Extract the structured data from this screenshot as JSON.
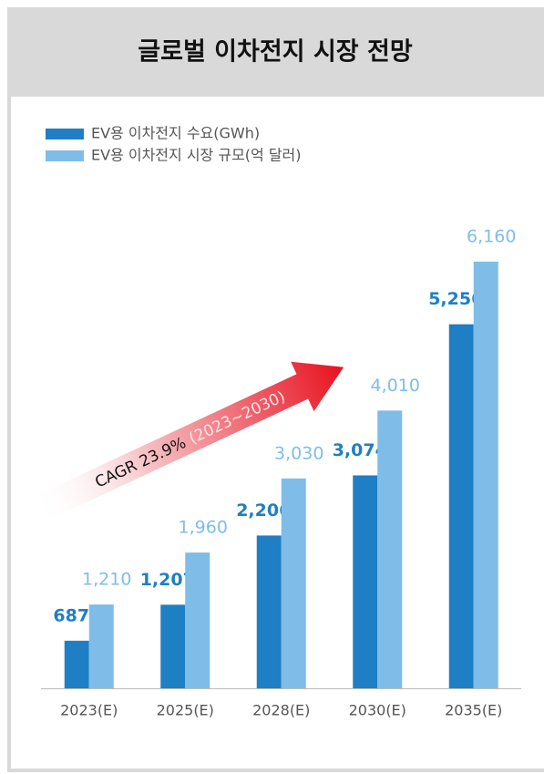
{
  "chart_data": {
    "type": "bar",
    "title": "글로벌 이차전지 시장 전망",
    "categories": [
      "2023(E)",
      "2025(E)",
      "2028(E)",
      "2030(E)",
      "2035(E)"
    ],
    "series": [
      {
        "name": "EV용 이차전지 수요(GWh)",
        "color": "#1f7fc4",
        "values": [
          687,
          1207,
          2206,
          3074,
          5256
        ],
        "value_labels": [
          "687",
          "1,207",
          "2,206",
          "3,074",
          "5,256"
        ]
      },
      {
        "name": "EV용 이차전지 시장 규모(억 달러)",
        "color": "#7fbde8",
        "values": [
          1210,
          1960,
          3030,
          4010,
          6160
        ],
        "value_labels": [
          "1,210",
          "1,960",
          "3,030",
          "4,010",
          "6,160"
        ]
      }
    ],
    "annotation": {
      "label": "CAGR 23.9%",
      "period": "(2023~2030)"
    },
    "legend": "top-left"
  }
}
